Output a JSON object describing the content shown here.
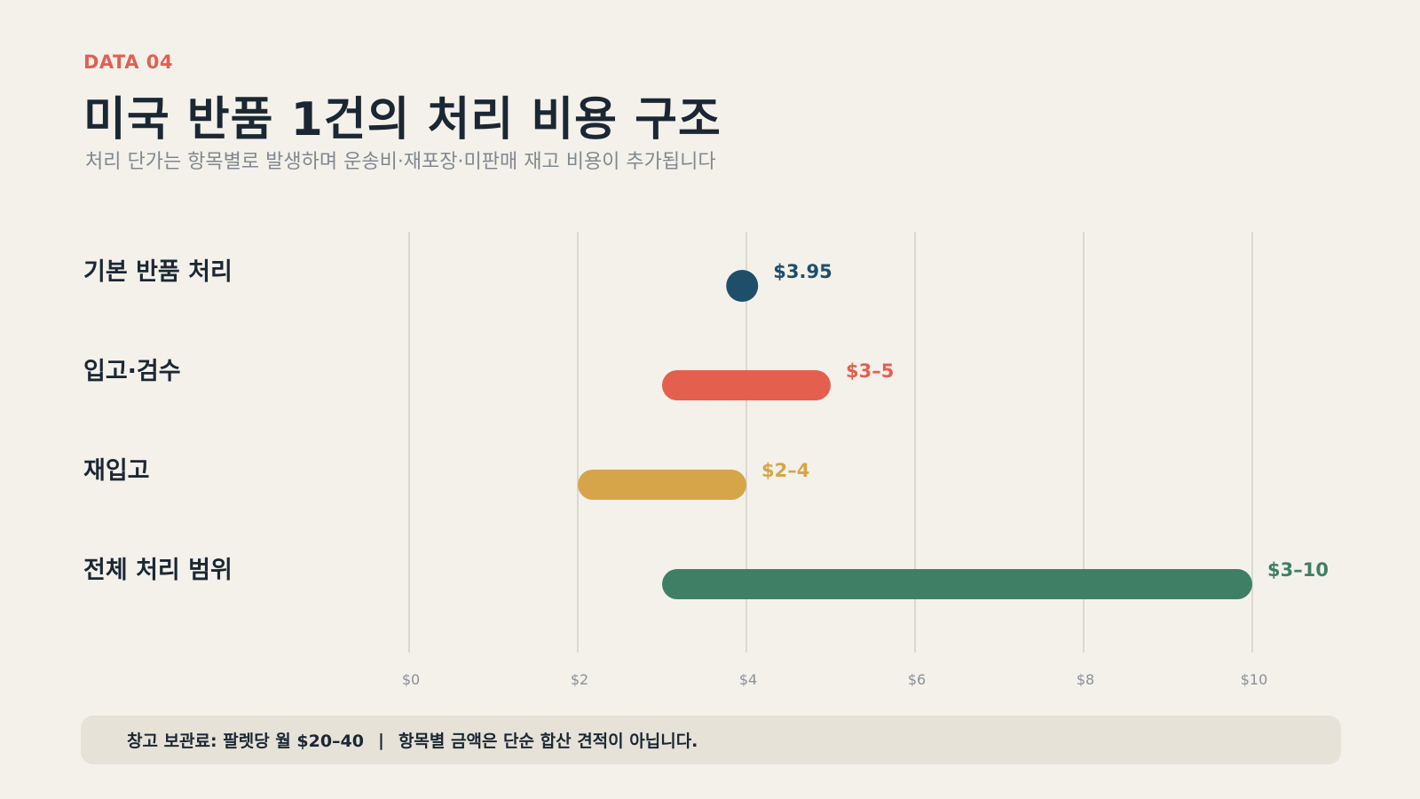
{
  "header": {
    "eyebrow": "DATA 04",
    "title": "미국 반품 1건의 처리 비용 구조",
    "subtitle": "처리 단가는 항목별로 발생하며 운송비·재포장·미판매 재고 비용이 추가됩니다"
  },
  "chart_data": {
    "type": "range_bar",
    "xlim": [
      0,
      10
    ],
    "x_ticks": [
      0,
      2,
      4,
      6,
      8,
      10
    ],
    "x_tick_labels": [
      "$0",
      "$2",
      "$4",
      "$6",
      "$8",
      "$10"
    ],
    "grid": true,
    "rows": [
      {
        "category": "기본 반품 처리",
        "min": 3.95,
        "max": 3.95,
        "label": "$3.95",
        "color": "#1f4e6b",
        "shape": "dot"
      },
      {
        "category": "입고·검수",
        "min": 3,
        "max": 5,
        "label": "$3–5",
        "color": "#e55f4f",
        "shape": "bar"
      },
      {
        "category": "재입고",
        "min": 2,
        "max": 4,
        "label": "$2–4",
        "color": "#d6a54a",
        "shape": "bar"
      },
      {
        "category": "전체 처리 범위",
        "min": 3,
        "max": 10,
        "label": "$3–10",
        "color": "#3e7f65",
        "shape": "bar"
      }
    ]
  },
  "footer": {
    "note_left": "창고 보관료: 팔렛당 월 $20–40",
    "separator": "|",
    "note_right": "항목별 금액은 단순 합산 견적이 아닙니다."
  },
  "colors": {
    "background": "#f4f1eb",
    "accent": "#e06052",
    "grid": "#dcd8cf",
    "footer_bg": "#e6e2d8"
  }
}
